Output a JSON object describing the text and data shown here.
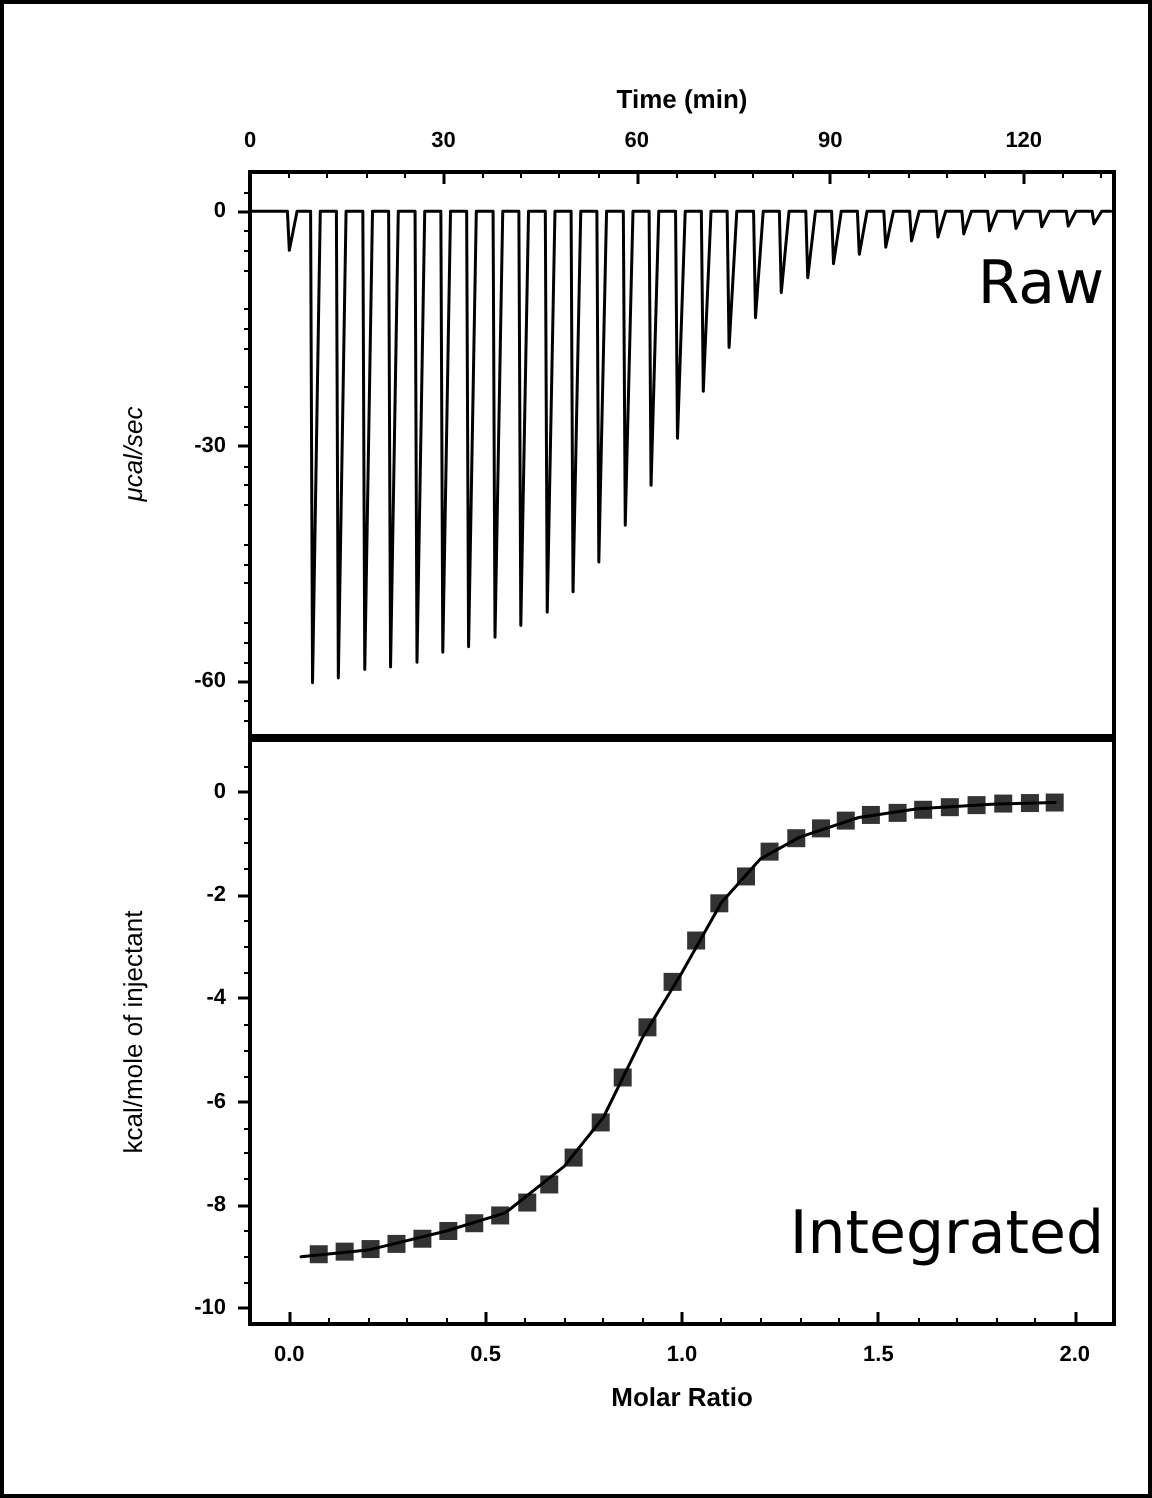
{
  "chart_data": [
    {
      "type": "line",
      "xlabel": "Time (min)",
      "ylabel": "μcal/sec",
      "xlim": [
        0,
        134
      ],
      "ylim": [
        -67,
        5
      ],
      "xticks": [
        0,
        30,
        60,
        90,
        120
      ],
      "yticks": [
        -60,
        -30,
        0
      ],
      "grid": false,
      "marker": "none",
      "line_style": "solid",
      "annotations": [
        "Raw"
      ],
      "series": [
        {
          "color": "#000000",
          "x": [
            0,
            5.8,
            6.1,
            7.3,
            9.4,
            9.7,
            10.9,
            13.4,
            13.7,
            14.9,
            17.5,
            17.8,
            19.0,
            21.5,
            21.8,
            23.0,
            25.6,
            25.9,
            27.1,
            29.6,
            29.9,
            31.1,
            33.6,
            33.9,
            35.1,
            37.7,
            38.0,
            39.2,
            41.7,
            42.0,
            43.2,
            45.8,
            46.1,
            47.3,
            49.8,
            50.1,
            51.3,
            53.8,
            54.1,
            55.3,
            57.9,
            58.2,
            59.4,
            61.9,
            62.2,
            63.4,
            66.0,
            66.3,
            67.5,
            70.0,
            70.3,
            71.5,
            74.0,
            74.3,
            75.5,
            78.1,
            78.4,
            79.6,
            82.1,
            82.4,
            83.6,
            86.2,
            86.5,
            87.7,
            90.2,
            90.5,
            91.7,
            94.2,
            94.5,
            95.7,
            98.3,
            98.6,
            99.8,
            102.3,
            102.6,
            103.8,
            106.4,
            106.7,
            107.9,
            110.4,
            110.7,
            111.9,
            114.4,
            114.7,
            115.9,
            118.5,
            118.8,
            120.0,
            122.5,
            122.8,
            124.0,
            126.6,
            126.9,
            128.1,
            130.6,
            130.9,
            132.1,
            133.5
          ],
          "values": [
            0,
            0,
            -5,
            0,
            0,
            -60.2,
            0,
            0,
            -59.6,
            0,
            0,
            -58.5,
            0,
            0,
            -58.2,
            0,
            0,
            -57.6,
            0,
            0,
            -56.3,
            0,
            0,
            -55.6,
            0,
            0,
            -54.4,
            0,
            0,
            -52.9,
            0,
            0,
            -51.2,
            0,
            0,
            -48.6,
            0,
            0,
            -44.8,
            0,
            0,
            -40.1,
            0,
            0,
            -35.0,
            0,
            0,
            -29.0,
            0,
            0,
            -23.0,
            0,
            0,
            -17.4,
            0,
            0,
            -13.6,
            0,
            0,
            -10.4,
            0,
            0,
            -8.5,
            0,
            0,
            -6.7,
            0,
            0,
            -5.5,
            0,
            0,
            -4.6,
            0,
            0,
            -3.8,
            0,
            0,
            -3.3,
            0,
            0,
            -2.9,
            0,
            0,
            -2.5,
            0,
            0,
            -2.2,
            0,
            0,
            -2.0,
            0,
            0,
            -1.9,
            0,
            0,
            -1.6,
            0,
            0
          ]
        }
      ]
    },
    {
      "type": "scatter",
      "xlabel": "Molar Ratio",
      "ylabel": "kcal/mole of injectant",
      "xlim": [
        -0.1,
        2.1
      ],
      "ylim": [
        -10.3,
        1
      ],
      "xticks": [
        {
          "value": 0,
          "label": "0.0"
        },
        0.5,
        {
          "value": 1,
          "label": "1.0"
        },
        1.5,
        {
          "value": 2,
          "label": "2.0"
        }
      ],
      "yticks": [
        -10,
        -8,
        -6,
        -4,
        -2,
        0
      ],
      "grid": false,
      "annotations": [
        "Integrated"
      ],
      "series": [
        {
          "marker": "square",
          "color": "#000000",
          "x": [
            0.075,
            0.141,
            0.207,
            0.273,
            0.339,
            0.405,
            0.471,
            0.537,
            0.606,
            0.662,
            0.724,
            0.793,
            0.849,
            0.912,
            0.976,
            1.036,
            1.095,
            1.163,
            1.223,
            1.291,
            1.354,
            1.417,
            1.481,
            1.549,
            1.614,
            1.682,
            1.75,
            1.818,
            1.886,
            1.949
          ],
          "values": [
            -8.95,
            -8.9,
            -8.85,
            -8.75,
            -8.65,
            -8.5,
            -8.35,
            -8.2,
            -7.95,
            -7.6,
            -7.08,
            -6.4,
            -5.53,
            -4.56,
            -3.68,
            -2.88,
            -2.16,
            -1.64,
            -1.16,
            -0.9,
            -0.71,
            -0.56,
            -0.45,
            -0.41,
            -0.35,
            -0.3,
            -0.26,
            -0.23,
            -0.22,
            -0.21
          ]
        },
        {
          "type": "line",
          "marker": "none",
          "line_style": "solid",
          "color": "#000000",
          "x": [
            0.03,
            0.2,
            0.4,
            0.55,
            0.7,
            0.8,
            0.9,
            1.0,
            1.1,
            1.2,
            1.3,
            1.45,
            1.6,
            1.8,
            1.95
          ],
          "values": [
            -9.0,
            -8.87,
            -8.5,
            -8.15,
            -7.25,
            -6.3,
            -4.75,
            -3.5,
            -2.15,
            -1.3,
            -0.88,
            -0.5,
            -0.33,
            -0.24,
            -0.21
          ]
        }
      ]
    }
  ]
}
